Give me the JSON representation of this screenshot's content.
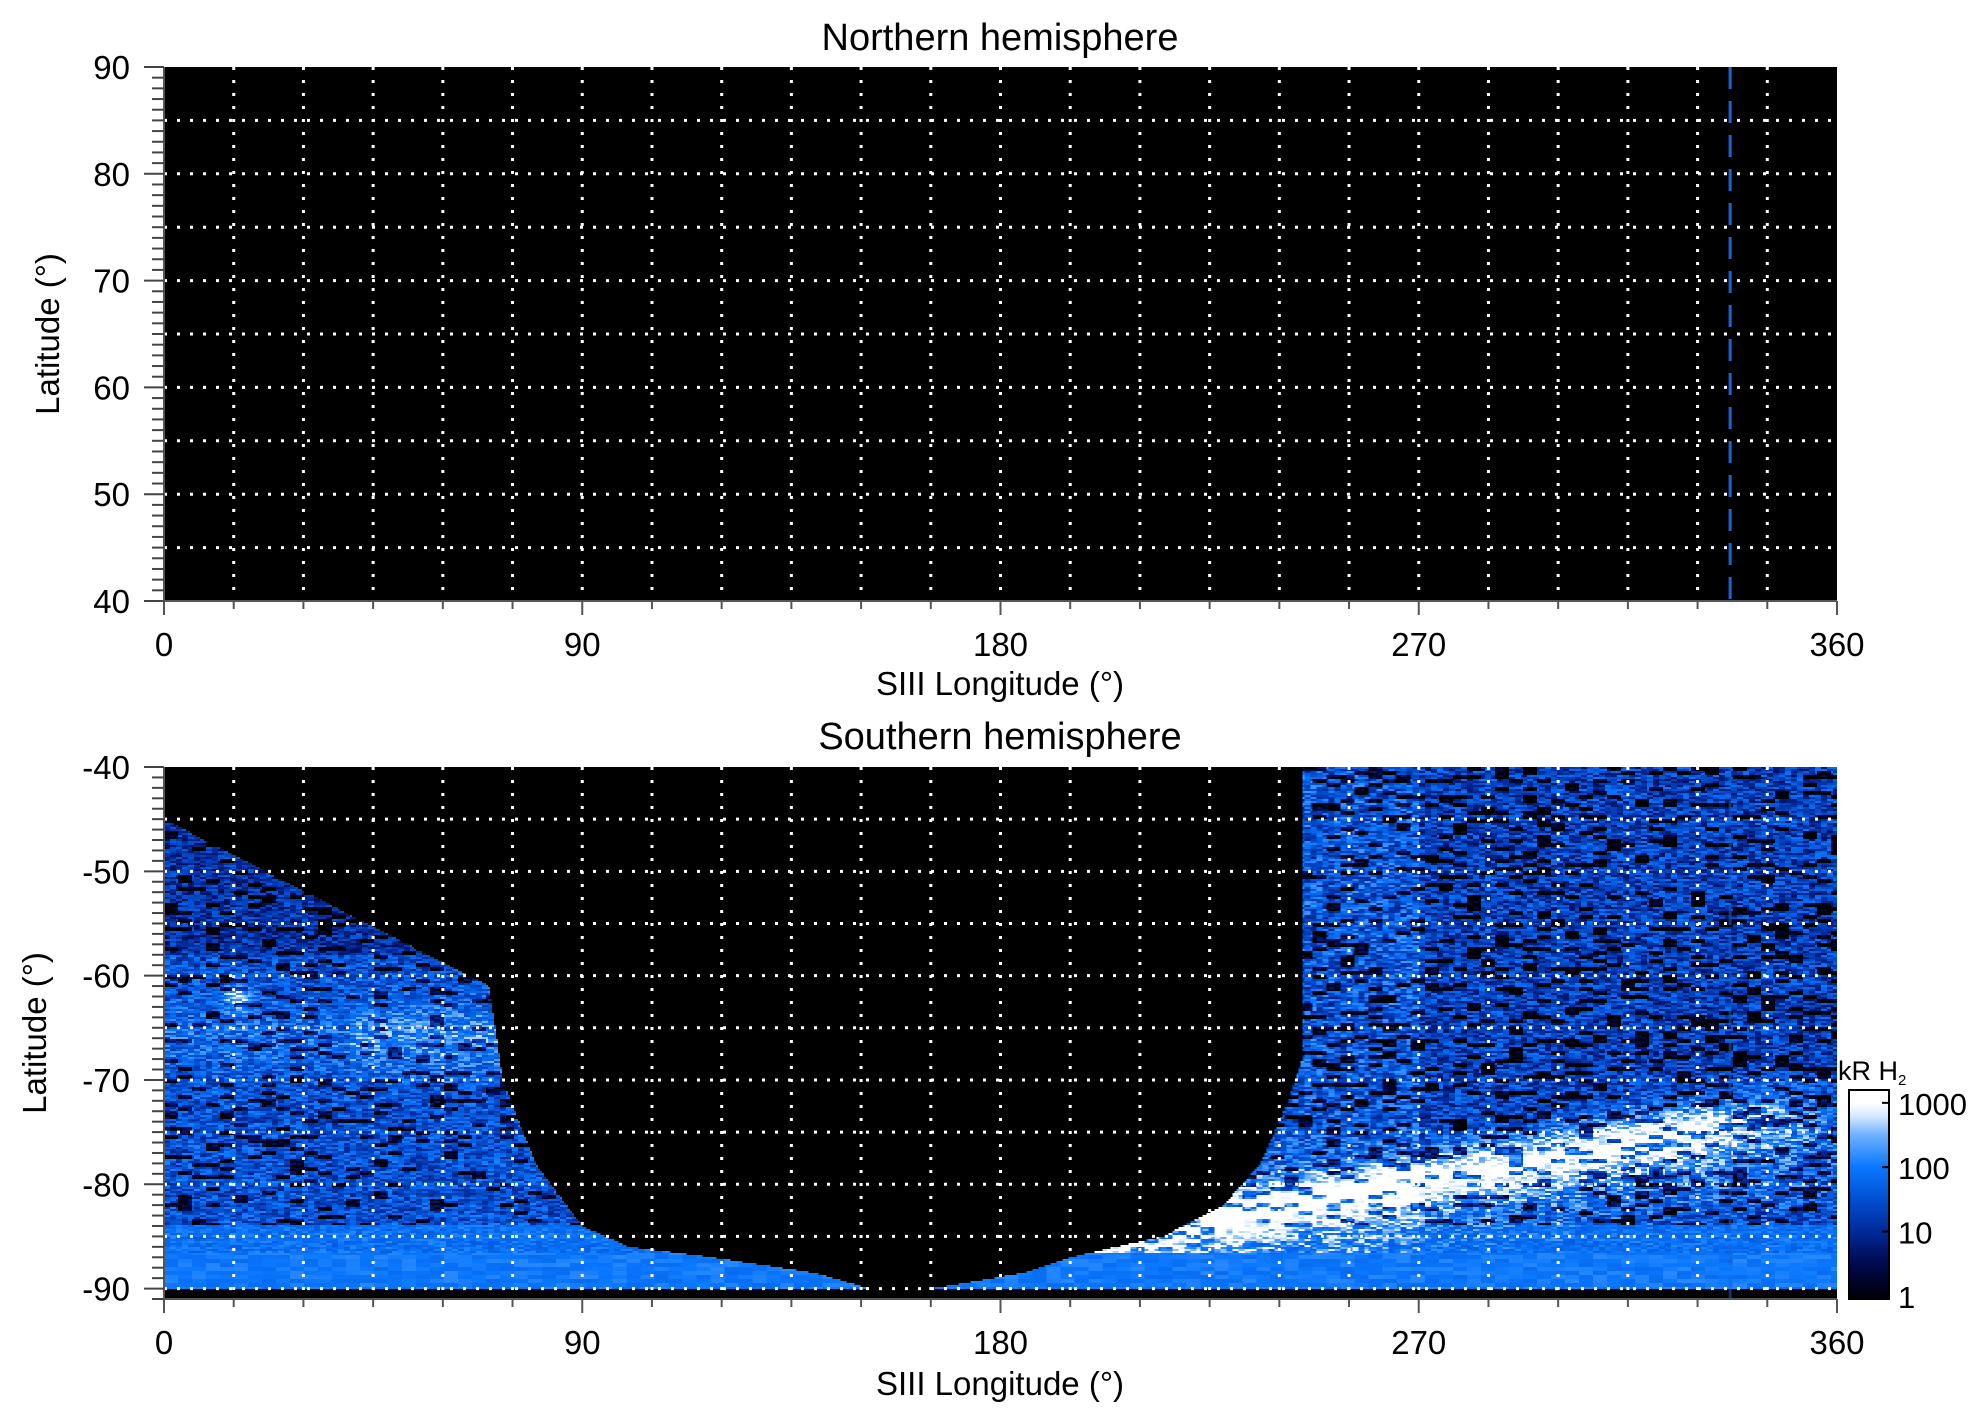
{
  "chart_data": [
    {
      "type": "heatmap",
      "title": "Northern hemisphere",
      "xlabel": "SIII Longitude (°)",
      "ylabel": "Latitude (°)",
      "xlim": [
        0,
        360
      ],
      "ylim": [
        40,
        90
      ],
      "xticks": [
        "0",
        "90",
        "180",
        "270",
        "360"
      ],
      "yticks": [
        "40",
        "50",
        "60",
        "70",
        "80",
        "90"
      ],
      "grid": {
        "on": true,
        "style": "dotted",
        "color": "#ffffff",
        "lon_step": 15,
        "lat_step": 5
      },
      "background": "#000000",
      "reference_line": {
        "longitude": 337,
        "style": "dashed",
        "color": "#1a64d2"
      },
      "data_note": "no emission"
    },
    {
      "type": "heatmap",
      "title": "Southern hemisphere",
      "xlabel": "SIII Longitude (°)",
      "ylabel": "Latitude (°)",
      "xlim": [
        0,
        360
      ],
      "ylim": [
        -91,
        -40
      ],
      "xticks": [
        "0",
        "90",
        "180",
        "270",
        "360"
      ],
      "yticks": [
        "-40",
        "-50",
        "-60",
        "-70",
        "-80",
        "-90"
      ],
      "grid": {
        "on": true,
        "style": "dotted",
        "color": "#ffffff",
        "lon_step": 15,
        "lat_step": 5
      },
      "reference_line": {
        "longitude": 337,
        "style": "dashed",
        "color": "#1a64d2"
      },
      "features": {
        "main_oval_arc": {
          "lon": [
            240,
            330
          ],
          "lat": [
            -82,
            -75
          ],
          "peak_kR": 1000
        },
        "left_bright_region": {
          "lon": [
            0,
            70
          ],
          "lat": [
            -70,
            -61
          ]
        },
        "bright_spot": {
          "lon": 15,
          "lat": -62
        }
      },
      "colorbar": {
        "label": "kR H",
        "label_subscript": "2",
        "scale": "log",
        "range": [
          1,
          1000
        ],
        "ticks": [
          "1000",
          "100",
          "10",
          "1"
        ],
        "colors": [
          "#00000e",
          "#000a50",
          "#002a9a",
          "#0050d0",
          "#0a78ff",
          "#6fb0ff",
          "#d5e9ff",
          "#ffffff"
        ]
      }
    }
  ]
}
